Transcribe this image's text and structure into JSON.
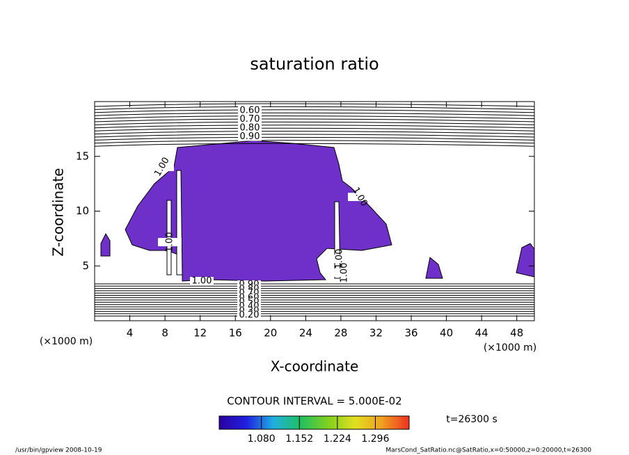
{
  "chart_data": {
    "type": "contour",
    "title": "saturation ratio",
    "x_label": "X-coordinate",
    "y_label": "Z-coordinate",
    "x_unit_label": "(×1000 m)",
    "y_unit_label": "(×1000 m)",
    "xlim": [
      0,
      50
    ],
    "xticks": [
      4,
      8,
      12,
      16,
      20,
      24,
      28,
      32,
      36,
      40,
      44,
      48
    ],
    "ylim": [
      0,
      20
    ],
    "yticks": [
      5,
      10,
      15
    ],
    "fill_color": "#6e30c8",
    "contour_labels_top": [
      "0.60",
      "0.70",
      "0.80",
      "0.90"
    ],
    "contour_labels_mid": [
      "1.00",
      "1.00",
      "1.00",
      "1.00",
      "1.00",
      "1.00"
    ],
    "contour_labels_bottom": [
      "0.90",
      "0.80",
      "0.70",
      "0.60",
      "0.50",
      "0.40",
      "0.30",
      "0.20"
    ],
    "contour_interval": "CONTOUR INTERVAL = 5.000E-02",
    "colorbar": {
      "clim": [
        1.0,
        1.36
      ],
      "colors": [
        "#2a00a0",
        "#2020e0",
        "#20b0e0",
        "#20c060",
        "#80d020",
        "#e0e020",
        "#f0a020",
        "#f03020"
      ],
      "ticks": [
        {
          "value": 1.08,
          "label": "1.080"
        },
        {
          "value": 1.152,
          "label": "1.152"
        },
        {
          "value": 1.224,
          "label": "1.224"
        },
        {
          "value": 1.296,
          "label": "1.296"
        }
      ]
    },
    "time_label": "t=26300 s",
    "footer_left": "/usr/bin/gpview   2008-10-19",
    "footer_right": "MarsCond_SatRatio.nc@SatRatio,x=0:50000,z=0:20000,t=26300"
  }
}
